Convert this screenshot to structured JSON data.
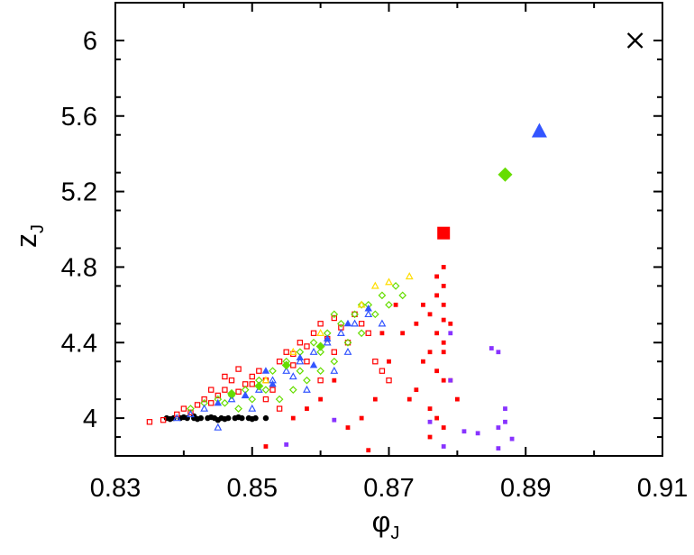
{
  "chart_data": {
    "type": "scatter",
    "title": "",
    "xlabel": "φ",
    "xlabel_sub": "J",
    "ylabel": "z",
    "ylabel_sub": "J",
    "xlim": [
      0.83,
      0.91
    ],
    "ylim": [
      3.8,
      6.2
    ],
    "xticks": [
      0.83,
      0.85,
      0.87,
      0.89,
      0.91
    ],
    "xtick_labels": [
      "0.83",
      "0.85",
      "0.87",
      "0.89",
      "0.91"
    ],
    "yticks": [
      4.0,
      4.4,
      4.8,
      5.2,
      5.6,
      6.0
    ],
    "ytick_labels": [
      "4",
      "4.4",
      "4.8",
      "5.2",
      "5.6",
      "6"
    ],
    "grid": false,
    "legend": "none",
    "series": [
      {
        "marker": "filled-circle",
        "color": "#000000",
        "points": [
          [
            0.8375,
            4.0
          ],
          [
            0.8385,
            4.0
          ],
          [
            0.8395,
            4.0
          ],
          [
            0.8405,
            4.0
          ],
          [
            0.8415,
            4.0
          ],
          [
            0.8425,
            4.0
          ],
          [
            0.8435,
            4.0
          ],
          [
            0.8445,
            4.0
          ],
          [
            0.8455,
            4.0
          ],
          [
            0.8465,
            4.0
          ],
          [
            0.8475,
            4.0
          ],
          [
            0.8485,
            4.0
          ],
          [
            0.8495,
            4.0
          ],
          [
            0.8505,
            4.0
          ],
          [
            0.852,
            4.0
          ],
          [
            0.838,
            3.995
          ],
          [
            0.84,
            4.005
          ],
          [
            0.842,
            3.995
          ],
          [
            0.844,
            4.005
          ],
          [
            0.846,
            3.995
          ],
          [
            0.848,
            4.005
          ],
          [
            0.85,
            3.995
          ],
          [
            0.845,
            3.99
          ],
          [
            0.8415,
            4.01
          ]
        ]
      },
      {
        "marker": "open-square",
        "color": "#ff0000",
        "points": [
          [
            0.835,
            3.98
          ],
          [
            0.837,
            3.99
          ],
          [
            0.839,
            4.02
          ],
          [
            0.84,
            4.05
          ],
          [
            0.841,
            4.03
          ],
          [
            0.842,
            4.07
          ],
          [
            0.843,
            4.1
          ],
          [
            0.844,
            4.08
          ],
          [
            0.845,
            4.12
          ],
          [
            0.846,
            4.15
          ],
          [
            0.847,
            4.2
          ],
          [
            0.848,
            4.14
          ],
          [
            0.849,
            4.18
          ],
          [
            0.85,
            4.22
          ],
          [
            0.851,
            4.25
          ],
          [
            0.852,
            4.2
          ],
          [
            0.853,
            4.15
          ],
          [
            0.854,
            4.3
          ],
          [
            0.855,
            4.35
          ],
          [
            0.856,
            4.28
          ],
          [
            0.857,
            4.4
          ],
          [
            0.858,
            4.38
          ],
          [
            0.859,
            4.45
          ],
          [
            0.86,
            4.5
          ],
          [
            0.861,
            4.42
          ],
          [
            0.862,
            4.53
          ],
          [
            0.863,
            4.48
          ],
          [
            0.864,
            4.4
          ],
          [
            0.865,
            4.55
          ],
          [
            0.866,
            4.5
          ],
          [
            0.867,
            4.45
          ],
          [
            0.868,
            4.3
          ],
          [
            0.869,
            4.25
          ],
          [
            0.87,
            4.2
          ],
          [
            0.844,
            4.15
          ],
          [
            0.846,
            4.22
          ],
          [
            0.848,
            4.26
          ],
          [
            0.85,
            4.18
          ],
          [
            0.852,
            4.1
          ],
          [
            0.854,
            4.05
          ],
          [
            0.856,
            4.34
          ],
          [
            0.858,
            4.3
          ],
          [
            0.86,
            4.2
          ],
          [
            0.862,
            4.35
          ]
        ]
      },
      {
        "marker": "filled-square-small",
        "color": "#ff0000",
        "points": [
          [
            0.878,
            4.8
          ],
          [
            0.877,
            4.75
          ],
          [
            0.878,
            4.7
          ],
          [
            0.877,
            4.65
          ],
          [
            0.878,
            4.6
          ],
          [
            0.876,
            4.55
          ],
          [
            0.878,
            4.52
          ],
          [
            0.877,
            4.45
          ],
          [
            0.878,
            4.4
          ],
          [
            0.876,
            4.35
          ],
          [
            0.875,
            4.3
          ],
          [
            0.877,
            4.25
          ],
          [
            0.878,
            4.2
          ],
          [
            0.874,
            4.15
          ],
          [
            0.873,
            4.1
          ],
          [
            0.876,
            4.05
          ],
          [
            0.877,
            4.0
          ],
          [
            0.878,
            3.95
          ],
          [
            0.876,
            3.9
          ],
          [
            0.875,
            4.6
          ],
          [
            0.874,
            4.5
          ],
          [
            0.872,
            4.45
          ],
          [
            0.87,
            4.3
          ],
          [
            0.868,
            4.1
          ],
          [
            0.866,
            4.0
          ],
          [
            0.864,
            3.95
          ],
          [
            0.862,
            4.2
          ],
          [
            0.86,
            4.1
          ],
          [
            0.858,
            4.05
          ],
          [
            0.856,
            4.0
          ],
          [
            0.852,
            3.85
          ],
          [
            0.867,
            3.83
          ],
          [
            0.879,
            4.2
          ],
          [
            0.88,
            4.1
          ],
          [
            0.879,
            4.5
          ],
          [
            0.878,
            4.35
          ],
          [
            0.871,
            4.6
          ],
          [
            0.869,
            4.45
          ]
        ]
      },
      {
        "marker": "open-diamond",
        "color": "#66dd00",
        "points": [
          [
            0.841,
            4.05
          ],
          [
            0.843,
            4.08
          ],
          [
            0.845,
            4.1
          ],
          [
            0.847,
            4.12
          ],
          [
            0.849,
            4.15
          ],
          [
            0.851,
            4.2
          ],
          [
            0.853,
            4.25
          ],
          [
            0.855,
            4.3
          ],
          [
            0.857,
            4.35
          ],
          [
            0.859,
            4.4
          ],
          [
            0.861,
            4.45
          ],
          [
            0.863,
            4.5
          ],
          [
            0.865,
            4.55
          ],
          [
            0.867,
            4.6
          ],
          [
            0.869,
            4.65
          ],
          [
            0.871,
            4.7
          ],
          [
            0.872,
            4.65
          ],
          [
            0.87,
            4.6
          ],
          [
            0.868,
            4.55
          ],
          [
            0.866,
            4.45
          ],
          [
            0.864,
            4.4
          ],
          [
            0.862,
            4.3
          ],
          [
            0.86,
            4.25
          ],
          [
            0.858,
            4.2
          ],
          [
            0.856,
            4.15
          ],
          [
            0.854,
            4.1
          ],
          [
            0.852,
            4.15
          ],
          [
            0.85,
            4.1
          ],
          [
            0.848,
            4.05
          ],
          [
            0.846,
            4.08
          ],
          [
            0.862,
            4.55
          ],
          [
            0.866,
            4.6
          ],
          [
            0.86,
            4.35
          ],
          [
            0.857,
            4.25
          ]
        ]
      },
      {
        "marker": "open-triangle",
        "color": "#ffdd00",
        "points": [
          [
            0.866,
            4.6
          ],
          [
            0.868,
            4.7
          ],
          [
            0.87,
            4.72
          ],
          [
            0.873,
            4.75
          ],
          [
            0.856,
            4.35
          ],
          [
            0.86,
            4.45
          ],
          [
            0.852,
            4.2
          ]
        ]
      },
      {
        "marker": "open-triangle",
        "color": "#3355ff",
        "points": [
          [
            0.839,
            4.0
          ],
          [
            0.841,
            4.02
          ],
          [
            0.843,
            4.05
          ],
          [
            0.845,
            3.95
          ],
          [
            0.847,
            4.1
          ],
          [
            0.849,
            4.12
          ],
          [
            0.851,
            4.15
          ],
          [
            0.853,
            4.2
          ],
          [
            0.855,
            4.25
          ],
          [
            0.857,
            4.3
          ],
          [
            0.859,
            4.35
          ],
          [
            0.861,
            4.4
          ],
          [
            0.863,
            4.45
          ],
          [
            0.865,
            4.5
          ],
          [
            0.867,
            4.55
          ],
          [
            0.869,
            4.5
          ],
          [
            0.864,
            4.35
          ],
          [
            0.862,
            4.25
          ],
          [
            0.858,
            4.15
          ],
          [
            0.856,
            4.22
          ],
          [
            0.85,
            4.05
          ]
        ]
      },
      {
        "marker": "filled-triangle-small",
        "color": "#3355ff",
        "points": [
          [
            0.845,
            4.08
          ],
          [
            0.849,
            4.12
          ],
          [
            0.853,
            4.18
          ],
          [
            0.857,
            4.32
          ],
          [
            0.861,
            4.42
          ],
          [
            0.864,
            4.5
          ],
          [
            0.867,
            4.58
          ],
          [
            0.852,
            4.25
          ],
          [
            0.859,
            4.28
          ]
        ]
      },
      {
        "marker": "filled-diamond-small",
        "color": "#66dd00",
        "points": [
          [
            0.847,
            4.13
          ],
          [
            0.851,
            4.17
          ],
          [
            0.855,
            4.28
          ],
          [
            0.86,
            4.38
          ]
        ]
      },
      {
        "marker": "filled-square-small",
        "color": "#8833ff",
        "points": [
          [
            0.879,
            4.45
          ],
          [
            0.885,
            4.37
          ],
          [
            0.886,
            4.35
          ],
          [
            0.887,
            4.05
          ],
          [
            0.887,
            3.98
          ],
          [
            0.886,
            3.95
          ],
          [
            0.888,
            3.89
          ],
          [
            0.883,
            3.92
          ],
          [
            0.881,
            3.93
          ],
          [
            0.879,
            4.2
          ],
          [
            0.878,
            3.85
          ],
          [
            0.886,
            3.84
          ],
          [
            0.855,
            3.86
          ],
          [
            0.876,
            3.98
          ],
          [
            0.862,
            3.99
          ]
        ]
      },
      {
        "marker": "large-filled-square",
        "color": "#ff0000",
        "points": [
          [
            0.878,
            4.98
          ]
        ]
      },
      {
        "marker": "large-filled-diamond",
        "color": "#66dd00",
        "points": [
          [
            0.887,
            5.29
          ]
        ]
      },
      {
        "marker": "large-filled-triangle",
        "color": "#3355ff",
        "points": [
          [
            0.892,
            5.52
          ]
        ]
      },
      {
        "marker": "cross",
        "color": "#000000",
        "points": [
          [
            0.906,
            6.0
          ]
        ]
      }
    ]
  }
}
